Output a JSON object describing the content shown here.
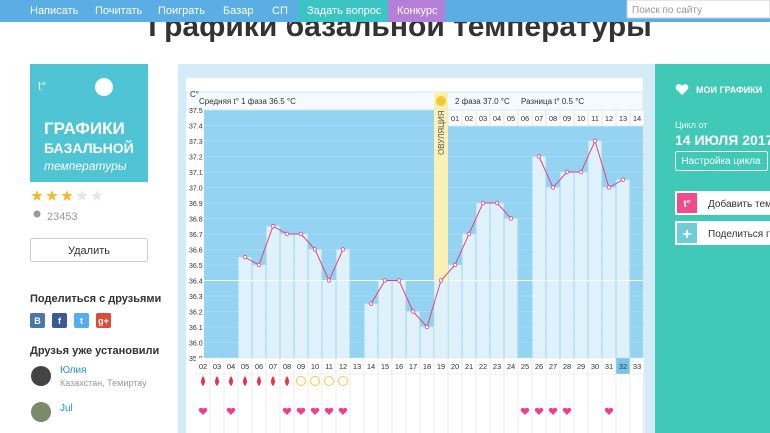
{
  "nav": {
    "items": [
      "Написать",
      "Почитать",
      "Поиграть",
      "Базар",
      "СП",
      "Задать вопрос",
      "Конкурс"
    ],
    "search_placeholder": "Поиск по сайту"
  },
  "page_title": "Графики базальной температуры",
  "app": {
    "icon_lines": [
      "t°",
      "ГРАФИКИ",
      "БАЗАЛЬНОЙ",
      "температуры"
    ],
    "rating": 3,
    "installs": 23453,
    "button": "Удалить"
  },
  "share": {
    "title": "Поделиться с друзьями",
    "icons": [
      "В",
      "f",
      "t",
      "g+"
    ]
  },
  "friends": {
    "title": "Друзья уже установили",
    "users": [
      {
        "name": "Юлия",
        "location": "Казахстан, Темиртау"
      },
      {
        "name": "Jul"
      }
    ]
  },
  "chart_data": {
    "type": "line",
    "y_label": "C°",
    "phase1_label": "Средняя t° 1 фаза 36.5 °C",
    "phase2_label": "2 фаза 37.0 °C",
    "diff_label": "Разница t° 0.5 °C",
    "ovulation_label": "ОВУЛЯЦИЯ",
    "categories": [
      "02",
      "03",
      "04",
      "05",
      "06",
      "07",
      "08",
      "09",
      "10",
      "11",
      "12",
      "13",
      "14",
      "15",
      "16",
      "17",
      "18",
      "19",
      "20",
      "21",
      "22",
      "23",
      "24",
      "25",
      "26",
      "27",
      "28",
      "29",
      "30",
      "31",
      "32",
      "33"
    ],
    "phase2_days": [
      "01",
      "02",
      "03",
      "04",
      "05",
      "06",
      "07",
      "08",
      "09",
      "10",
      "11",
      "12",
      "13",
      "14"
    ],
    "today": "32",
    "values": [
      null,
      null,
      null,
      36.55,
      36.5,
      36.75,
      36.7,
      36.7,
      36.6,
      36.4,
      36.6,
      null,
      36.25,
      36.4,
      36.4,
      36.2,
      36.1,
      36.4,
      36.5,
      36.7,
      36.9,
      36.9,
      36.8,
      null,
      37.2,
      37.0,
      37.1,
      37.1,
      37.3,
      37.0,
      37.05,
      null
    ],
    "color": "#e0457b",
    "coverline": 36.4,
    "ylim": [
      35.9,
      37.5
    ],
    "yticks": [
      35.9,
      {
        "value": 36,
        "label": "36.0"
      },
      36.1,
      36.2,
      36.3,
      36.4,
      36.5,
      36.6,
      36.7,
      36.8,
      36.9,
      {
        "value": 37,
        "label": "37.0"
      },
      37.1,
      37.2,
      37.3,
      37.4,
      37.5
    ]
  },
  "side": {
    "title": "МОИ ГРАФИКИ",
    "cycle_label": "Цикл от",
    "cycle_date": "14 ИЮЛЯ 2017",
    "settings_button": "Настройка цикла",
    "add_temp": "Добавить тем",
    "share_chart": "Поделиться гр",
    "add_icon": "t°",
    "share_icon": "+"
  }
}
